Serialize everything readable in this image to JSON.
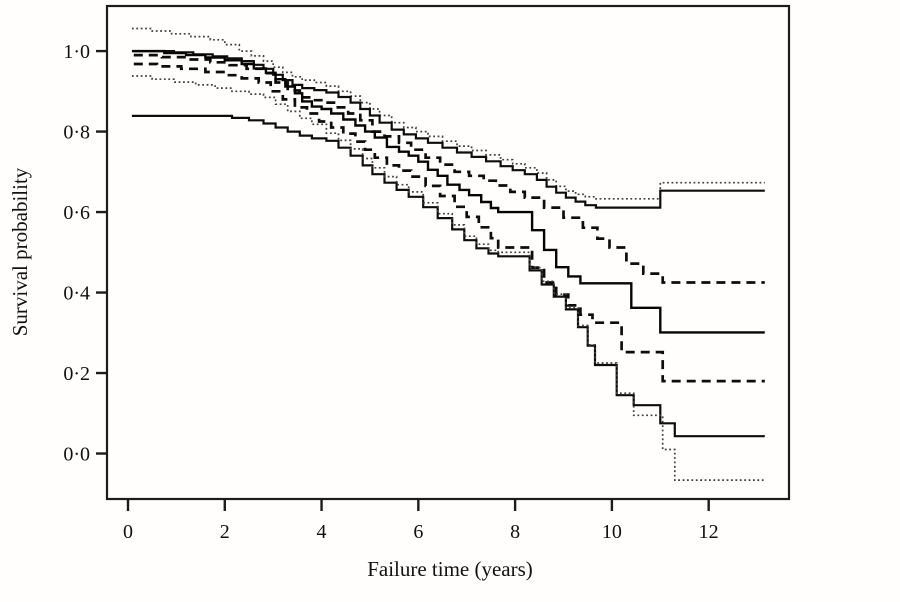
{
  "figure": {
    "background": "#fffefd",
    "frame_color": "#1c1c1c",
    "text_color": "#111111"
  },
  "chart_data": {
    "type": "line",
    "subtype": "step-survival-curves",
    "title": "",
    "xlabel": "Failure time (years)",
    "ylabel": "Survival probability",
    "x_ticks": [
      0,
      2,
      4,
      6,
      8,
      10,
      12
    ],
    "x_tick_labels": [
      "0",
      "2",
      "4",
      "6",
      "8",
      "10",
      "12"
    ],
    "y_ticks": [
      0.0,
      0.2,
      0.4,
      0.6,
      0.8,
      1.0
    ],
    "y_tick_labels": [
      "0·0",
      "0·2",
      "0·4",
      "0·6",
      "0·8",
      "1·0"
    ],
    "xlim": [
      -0.434,
      13.66
    ],
    "ylim": [
      -0.113,
      1.112
    ],
    "x_end": 13.16,
    "grid": false,
    "legend": "none",
    "series": [
      {
        "name": "upper-confidence-band-dotted",
        "line_style": "dotted",
        "color": "#3f3f3f",
        "width": 1.7,
        "points": [
          [
            0.08,
            1.056
          ],
          [
            0.5,
            1.05
          ],
          [
            0.9,
            1.043
          ],
          [
            1.3,
            1.036
          ],
          [
            1.7,
            1.028
          ],
          [
            2.0,
            1.016
          ],
          [
            2.3,
            1.0
          ],
          [
            2.55,
            0.988
          ],
          [
            2.8,
            0.975
          ],
          [
            3.0,
            0.96
          ],
          [
            3.2,
            0.947
          ],
          [
            3.4,
            0.936
          ],
          [
            3.6,
            0.928
          ],
          [
            3.85,
            0.922
          ],
          [
            4.1,
            0.913
          ],
          [
            4.35,
            0.9
          ],
          [
            4.6,
            0.888
          ],
          [
            4.8,
            0.872
          ],
          [
            5.0,
            0.856
          ],
          [
            5.2,
            0.84
          ],
          [
            5.45,
            0.822
          ],
          [
            5.7,
            0.81
          ],
          [
            5.95,
            0.8
          ],
          [
            6.2,
            0.788
          ],
          [
            6.5,
            0.776
          ],
          [
            6.8,
            0.764
          ],
          [
            7.1,
            0.753
          ],
          [
            7.4,
            0.742
          ],
          [
            7.7,
            0.73
          ],
          [
            7.95,
            0.72
          ],
          [
            8.2,
            0.71
          ],
          [
            8.45,
            0.697
          ],
          [
            8.65,
            0.68
          ],
          [
            8.85,
            0.664
          ],
          [
            9.05,
            0.652
          ],
          [
            9.25,
            0.644
          ],
          [
            9.45,
            0.638
          ],
          [
            9.67,
            0.633
          ],
          [
            11.0,
            0.673
          ]
        ]
      },
      {
        "name": "upper-confidence-band-solid",
        "line_style": "solid",
        "color": "#0d0d0d",
        "width": 2.2,
        "points": [
          [
            0.08,
            1.0
          ],
          [
            0.95,
            0.997
          ],
          [
            1.35,
            0.992
          ],
          [
            1.75,
            0.987
          ],
          [
            2.05,
            0.982
          ],
          [
            2.35,
            0.975
          ],
          [
            2.6,
            0.966
          ],
          [
            2.8,
            0.956
          ],
          [
            3.0,
            0.941
          ],
          [
            3.2,
            0.928
          ],
          [
            3.4,
            0.916
          ],
          [
            3.6,
            0.908
          ],
          [
            3.85,
            0.903
          ],
          [
            4.1,
            0.897
          ],
          [
            4.35,
            0.886
          ],
          [
            4.6,
            0.872
          ],
          [
            4.8,
            0.856
          ],
          [
            5.0,
            0.84
          ],
          [
            5.2,
            0.822
          ],
          [
            5.45,
            0.805
          ],
          [
            5.7,
            0.793
          ],
          [
            5.95,
            0.783
          ],
          [
            6.2,
            0.772
          ],
          [
            6.5,
            0.76
          ],
          [
            6.8,
            0.748
          ],
          [
            7.1,
            0.737
          ],
          [
            7.4,
            0.726
          ],
          [
            7.7,
            0.714
          ],
          [
            7.95,
            0.704
          ],
          [
            8.2,
            0.694
          ],
          [
            8.45,
            0.68
          ],
          [
            8.65,
            0.663
          ],
          [
            8.85,
            0.648
          ],
          [
            9.05,
            0.636
          ],
          [
            9.25,
            0.626
          ],
          [
            9.45,
            0.617
          ],
          [
            9.67,
            0.611
          ],
          [
            11.0,
            0.653
          ]
        ]
      },
      {
        "name": "upper-confidence-limit-dashed",
        "line_style": "dashed",
        "color": "#0d0d0d",
        "width": 2.7,
        "points": [
          [
            0.12,
            0.99
          ],
          [
            0.7,
            0.985
          ],
          [
            1.2,
            0.979
          ],
          [
            1.7,
            0.972
          ],
          [
            2.1,
            0.965
          ],
          [
            2.45,
            0.956
          ],
          [
            2.8,
            0.945
          ],
          [
            3.05,
            0.922
          ],
          [
            3.3,
            0.902
          ],
          [
            3.55,
            0.885
          ],
          [
            3.8,
            0.878
          ],
          [
            4.05,
            0.872
          ],
          [
            4.3,
            0.86
          ],
          [
            4.55,
            0.845
          ],
          [
            4.8,
            0.828
          ],
          [
            5.05,
            0.8
          ],
          [
            5.3,
            0.788
          ],
          [
            5.6,
            0.772
          ],
          [
            5.85,
            0.755
          ],
          [
            6.15,
            0.735
          ],
          [
            6.45,
            0.718
          ],
          [
            6.75,
            0.7
          ],
          [
            7.05,
            0.69
          ],
          [
            7.35,
            0.678
          ],
          [
            7.6,
            0.666
          ],
          [
            7.9,
            0.65
          ],
          [
            8.2,
            0.636
          ],
          [
            8.6,
            0.611
          ],
          [
            9.0,
            0.586
          ],
          [
            9.4,
            0.561
          ],
          [
            9.7,
            0.534
          ],
          [
            9.95,
            0.512
          ],
          [
            10.3,
            0.472
          ],
          [
            10.65,
            0.447
          ],
          [
            11.05,
            0.425
          ]
        ]
      },
      {
        "name": "survival-estimate-solid",
        "line_style": "solid",
        "color": "#050505",
        "width": 2.4,
        "points": [
          [
            0.1,
            1.0
          ],
          [
            0.75,
            0.995
          ],
          [
            1.2,
            0.99
          ],
          [
            1.6,
            0.984
          ],
          [
            2.0,
            0.977
          ],
          [
            2.35,
            0.968
          ],
          [
            2.6,
            0.957
          ],
          [
            2.85,
            0.946
          ],
          [
            3.05,
            0.93
          ],
          [
            3.25,
            0.912
          ],
          [
            3.45,
            0.895
          ],
          [
            3.6,
            0.875
          ],
          [
            3.8,
            0.862
          ],
          [
            4.0,
            0.856
          ],
          [
            4.2,
            0.845
          ],
          [
            4.45,
            0.83
          ],
          [
            4.7,
            0.815
          ],
          [
            4.9,
            0.8
          ],
          [
            5.1,
            0.785
          ],
          [
            5.35,
            0.762
          ],
          [
            5.6,
            0.75
          ],
          [
            5.8,
            0.74
          ],
          [
            6.0,
            0.725
          ],
          [
            6.2,
            0.705
          ],
          [
            6.4,
            0.69
          ],
          [
            6.6,
            0.668
          ],
          [
            6.85,
            0.655
          ],
          [
            7.05,
            0.642
          ],
          [
            7.3,
            0.625
          ],
          [
            7.5,
            0.61
          ],
          [
            7.65,
            0.6
          ],
          [
            8.35,
            0.555
          ],
          [
            8.6,
            0.506
          ],
          [
            8.85,
            0.463
          ],
          [
            9.1,
            0.44
          ],
          [
            9.35,
            0.423
          ],
          [
            10.4,
            0.362
          ],
          [
            11.0,
            0.301
          ]
        ]
      },
      {
        "name": "lower-confidence-limit-dashed",
        "line_style": "dashed",
        "color": "#0d0d0d",
        "width": 2.7,
        "points": [
          [
            0.12,
            0.968
          ],
          [
            0.6,
            0.962
          ],
          [
            1.1,
            0.956
          ],
          [
            1.6,
            0.948
          ],
          [
            2.0,
            0.94
          ],
          [
            2.35,
            0.932
          ],
          [
            2.7,
            0.922
          ],
          [
            2.95,
            0.9
          ],
          [
            3.2,
            0.88
          ],
          [
            3.45,
            0.86
          ],
          [
            3.7,
            0.845
          ],
          [
            3.95,
            0.825
          ],
          [
            4.2,
            0.81
          ],
          [
            4.45,
            0.795
          ],
          [
            4.7,
            0.775
          ],
          [
            4.9,
            0.755
          ],
          [
            5.1,
            0.735
          ],
          [
            5.35,
            0.716
          ],
          [
            5.6,
            0.703
          ],
          [
            5.85,
            0.688
          ],
          [
            6.15,
            0.665
          ],
          [
            6.45,
            0.64
          ],
          [
            6.75,
            0.613
          ],
          [
            7.0,
            0.588
          ],
          [
            7.25,
            0.562
          ],
          [
            7.5,
            0.535
          ],
          [
            7.65,
            0.512
          ],
          [
            8.35,
            0.462
          ],
          [
            8.6,
            0.425
          ],
          [
            8.85,
            0.395
          ],
          [
            9.1,
            0.368
          ],
          [
            9.35,
            0.345
          ],
          [
            9.6,
            0.325
          ],
          [
            10.2,
            0.252
          ],
          [
            11.05,
            0.18
          ]
        ]
      },
      {
        "name": "lower-confidence-band-solid",
        "line_style": "solid",
        "color": "#0d0d0d",
        "width": 2.2,
        "points": [
          [
            0.08,
            0.839
          ],
          [
            2.15,
            0.834
          ],
          [
            2.5,
            0.828
          ],
          [
            2.8,
            0.82
          ],
          [
            3.05,
            0.81
          ],
          [
            3.3,
            0.8
          ],
          [
            3.55,
            0.79
          ],
          [
            3.8,
            0.783
          ],
          [
            4.1,
            0.777
          ],
          [
            4.35,
            0.76
          ],
          [
            4.6,
            0.74
          ],
          [
            4.85,
            0.716
          ],
          [
            5.05,
            0.694
          ],
          [
            5.3,
            0.673
          ],
          [
            5.55,
            0.655
          ],
          [
            5.8,
            0.638
          ],
          [
            6.1,
            0.612
          ],
          [
            6.4,
            0.585
          ],
          [
            6.7,
            0.557
          ],
          [
            6.95,
            0.53
          ],
          [
            7.2,
            0.51
          ],
          [
            7.45,
            0.497
          ],
          [
            7.65,
            0.49
          ],
          [
            8.3,
            0.455
          ],
          [
            8.55,
            0.42
          ],
          [
            8.8,
            0.39
          ],
          [
            9.05,
            0.358
          ],
          [
            9.3,
            0.314
          ],
          [
            9.5,
            0.268
          ],
          [
            9.65,
            0.22
          ],
          [
            10.1,
            0.145
          ],
          [
            10.45,
            0.12
          ],
          [
            11.0,
            0.075
          ],
          [
            11.3,
            0.043
          ]
        ]
      },
      {
        "name": "lower-confidence-band-dotted",
        "line_style": "dotted",
        "color": "#3f3f3f",
        "width": 1.7,
        "points": [
          [
            0.08,
            0.938
          ],
          [
            0.5,
            0.93
          ],
          [
            0.95,
            0.923
          ],
          [
            1.4,
            0.916
          ],
          [
            1.8,
            0.908
          ],
          [
            2.15,
            0.9
          ],
          [
            2.5,
            0.893
          ],
          [
            2.8,
            0.885
          ],
          [
            3.05,
            0.868
          ],
          [
            3.3,
            0.85
          ],
          [
            3.55,
            0.833
          ],
          [
            3.8,
            0.818
          ],
          [
            4.1,
            0.796
          ],
          [
            4.35,
            0.778
          ],
          [
            4.6,
            0.757
          ],
          [
            4.85,
            0.733
          ],
          [
            5.05,
            0.71
          ],
          [
            5.3,
            0.688
          ],
          [
            5.55,
            0.668
          ],
          [
            5.8,
            0.65
          ],
          [
            6.1,
            0.623
          ],
          [
            6.4,
            0.596
          ],
          [
            6.7,
            0.568
          ],
          [
            6.95,
            0.54
          ],
          [
            7.2,
            0.52
          ],
          [
            7.45,
            0.505
          ],
          [
            7.65,
            0.5
          ],
          [
            8.3,
            0.462
          ],
          [
            8.55,
            0.428
          ],
          [
            8.8,
            0.396
          ],
          [
            9.05,
            0.362
          ],
          [
            9.3,
            0.318
          ],
          [
            9.5,
            0.27
          ],
          [
            9.65,
            0.225
          ],
          [
            10.1,
            0.15
          ],
          [
            10.45,
            0.095
          ],
          [
            11.05,
            0.01
          ],
          [
            11.3,
            -0.066
          ]
        ]
      }
    ]
  }
}
